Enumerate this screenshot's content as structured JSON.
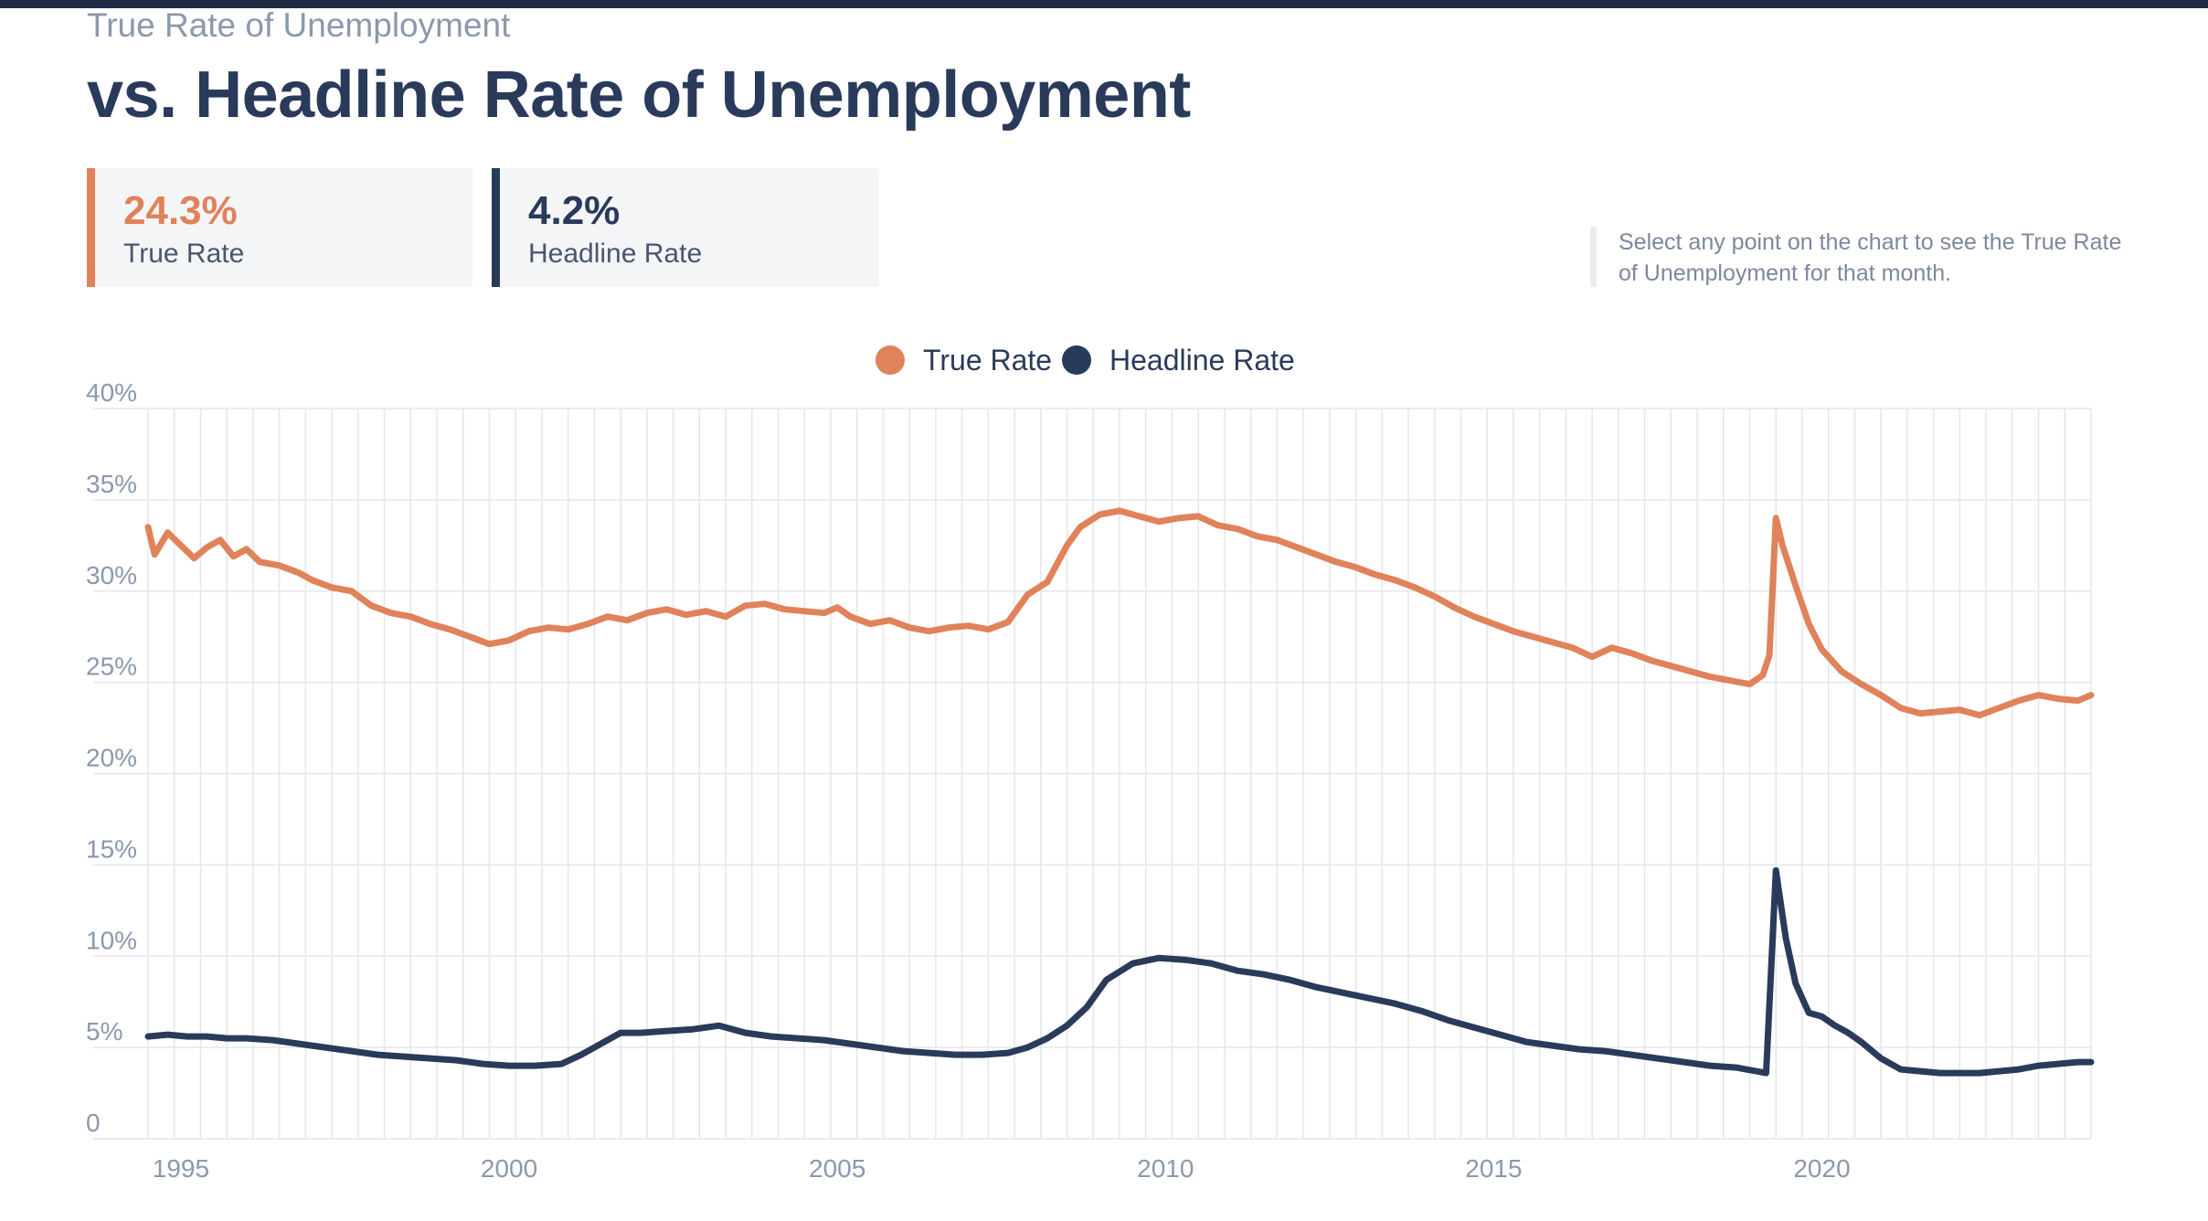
{
  "header": {
    "kicker": "True Rate of Unemployment",
    "title": "vs. Headline Rate of Unemployment"
  },
  "stats": {
    "true_value": "24.3%",
    "true_label": "True Rate",
    "headline_value": "4.2%",
    "headline_label": "Headline Rate"
  },
  "hint": "Select any point on the chart to see the True Rate of Unemployment for that month.",
  "colors": {
    "true_rate": "#e0825a",
    "headline_rate": "#2a3a5a",
    "grid": "#e3e6eb",
    "axis_text": "#8b98ad"
  },
  "chart_data": {
    "type": "line",
    "title": "",
    "xlabel": "",
    "ylabel": "",
    "xlim": [
      1994.5,
      2024.1
    ],
    "ylim": [
      0,
      40
    ],
    "y_ticks": [
      "0",
      "5%",
      "10%",
      "15%",
      "20%",
      "25%",
      "30%",
      "35%",
      "40%"
    ],
    "y_tick_values": [
      0,
      5,
      10,
      15,
      20,
      25,
      30,
      35,
      40
    ],
    "x_ticks": [
      "1995",
      "2000",
      "2005",
      "2010",
      "2015",
      "2020"
    ],
    "x_tick_values": [
      1995,
      2000,
      2005,
      2010,
      2015,
      2020
    ],
    "grid": true,
    "legend": "top-center",
    "series": [
      {
        "name": "True Rate",
        "x": [
          1994.5,
          1994.6,
          1994.8,
          1995.0,
          1995.2,
          1995.4,
          1995.6,
          1995.8,
          1996.0,
          1996.2,
          1996.5,
          1996.8,
          1997.0,
          1997.3,
          1997.6,
          1997.9,
          1998.2,
          1998.5,
          1998.8,
          1999.1,
          1999.4,
          1999.7,
          2000.0,
          2000.3,
          2000.6,
          2000.9,
          2001.2,
          2001.5,
          2001.8,
          2002.1,
          2002.4,
          2002.7,
          2003.0,
          2003.3,
          2003.6,
          2003.9,
          2004.2,
          2004.5,
          2004.8,
          2005.0,
          2005.2,
          2005.5,
          2005.8,
          2006.1,
          2006.4,
          2006.7,
          2007.0,
          2007.3,
          2007.6,
          2007.9,
          2008.2,
          2008.5,
          2008.7,
          2009.0,
          2009.3,
          2009.6,
          2009.9,
          2010.2,
          2010.5,
          2010.8,
          2011.1,
          2011.4,
          2011.7,
          2012.0,
          2012.3,
          2012.6,
          2012.9,
          2013.2,
          2013.5,
          2013.8,
          2014.1,
          2014.4,
          2014.7,
          2015.0,
          2015.3,
          2015.6,
          2015.9,
          2016.2,
          2016.5,
          2016.8,
          2017.1,
          2017.4,
          2017.7,
          2018.0,
          2018.3,
          2018.6,
          2018.9,
          2019.1,
          2019.2,
          2019.3,
          2019.4,
          2019.6,
          2019.8,
          2020.0,
          2020.3,
          2020.6,
          2020.9,
          2021.2,
          2021.5,
          2021.8,
          2022.1,
          2022.4,
          2022.7,
          2023.0,
          2023.3,
          2023.6,
          2023.9,
          2024.1
        ],
        "values": [
          33.5,
          32.0,
          33.2,
          32.5,
          31.8,
          32.4,
          32.8,
          31.9,
          32.3,
          31.6,
          31.4,
          31.0,
          30.6,
          30.2,
          30.0,
          29.2,
          28.8,
          28.6,
          28.2,
          27.9,
          27.5,
          27.1,
          27.3,
          27.8,
          28.0,
          27.9,
          28.2,
          28.6,
          28.4,
          28.8,
          29.0,
          28.7,
          28.9,
          28.6,
          29.2,
          29.3,
          29.0,
          28.9,
          28.8,
          29.1,
          28.6,
          28.2,
          28.4,
          28.0,
          27.8,
          28.0,
          28.1,
          27.9,
          28.3,
          29.8,
          30.5,
          32.5,
          33.5,
          34.2,
          34.4,
          34.1,
          33.8,
          34.0,
          34.1,
          33.6,
          33.4,
          33.0,
          32.8,
          32.4,
          32.0,
          31.6,
          31.3,
          30.9,
          30.6,
          30.2,
          29.7,
          29.1,
          28.6,
          28.2,
          27.8,
          27.5,
          27.2,
          26.9,
          26.4,
          26.9,
          26.6,
          26.2,
          25.9,
          25.6,
          25.3,
          25.1,
          24.9,
          25.4,
          26.5,
          34.0,
          32.5,
          30.3,
          28.2,
          26.8,
          25.6,
          24.9,
          24.3,
          23.6,
          23.3,
          23.4,
          23.5,
          23.2,
          23.6,
          24.0,
          24.3,
          24.1,
          24.0,
          24.3
        ]
      },
      {
        "name": "Headline Rate",
        "x": [
          1994.5,
          1994.8,
          1995.1,
          1995.4,
          1995.7,
          1996.0,
          1996.4,
          1996.8,
          1997.2,
          1997.6,
          1998.0,
          1998.4,
          1998.8,
          1999.2,
          1999.6,
          2000.0,
          2000.4,
          2000.8,
          2001.1,
          2001.4,
          2001.7,
          2002.0,
          2002.4,
          2002.8,
          2003.2,
          2003.6,
          2004.0,
          2004.4,
          2004.8,
          2005.2,
          2005.6,
          2006.0,
          2006.4,
          2006.8,
          2007.2,
          2007.6,
          2007.9,
          2008.2,
          2008.5,
          2008.8,
          2009.1,
          2009.5,
          2009.9,
          2010.3,
          2010.7,
          2011.1,
          2011.5,
          2011.9,
          2012.3,
          2012.7,
          2013.1,
          2013.5,
          2013.9,
          2014.3,
          2014.7,
          2015.1,
          2015.5,
          2015.9,
          2016.3,
          2016.7,
          2017.1,
          2017.5,
          2017.9,
          2018.3,
          2018.7,
          2019.0,
          2019.15,
          2019.3,
          2019.45,
          2019.6,
          2019.8,
          2020.0,
          2020.2,
          2020.4,
          2020.6,
          2020.9,
          2021.2,
          2021.5,
          2021.8,
          2022.1,
          2022.4,
          2022.7,
          2023.0,
          2023.3,
          2023.6,
          2023.9,
          2024.1
        ],
        "values": [
          5.6,
          5.7,
          5.6,
          5.6,
          5.5,
          5.5,
          5.4,
          5.2,
          5.0,
          4.8,
          4.6,
          4.5,
          4.4,
          4.3,
          4.1,
          4.0,
          4.0,
          4.1,
          4.6,
          5.2,
          5.8,
          5.8,
          5.9,
          6.0,
          6.2,
          5.8,
          5.6,
          5.5,
          5.4,
          5.2,
          5.0,
          4.8,
          4.7,
          4.6,
          4.6,
          4.7,
          5.0,
          5.5,
          6.2,
          7.2,
          8.7,
          9.6,
          9.9,
          9.8,
          9.6,
          9.2,
          9.0,
          8.7,
          8.3,
          8.0,
          7.7,
          7.4,
          7.0,
          6.5,
          6.1,
          5.7,
          5.3,
          5.1,
          4.9,
          4.8,
          4.6,
          4.4,
          4.2,
          4.0,
          3.9,
          3.7,
          3.6,
          14.7,
          11.0,
          8.5,
          6.9,
          6.7,
          6.2,
          5.8,
          5.3,
          4.4,
          3.8,
          3.7,
          3.6,
          3.6,
          3.6,
          3.7,
          3.8,
          4.0,
          4.1,
          4.2,
          4.2
        ]
      }
    ]
  }
}
